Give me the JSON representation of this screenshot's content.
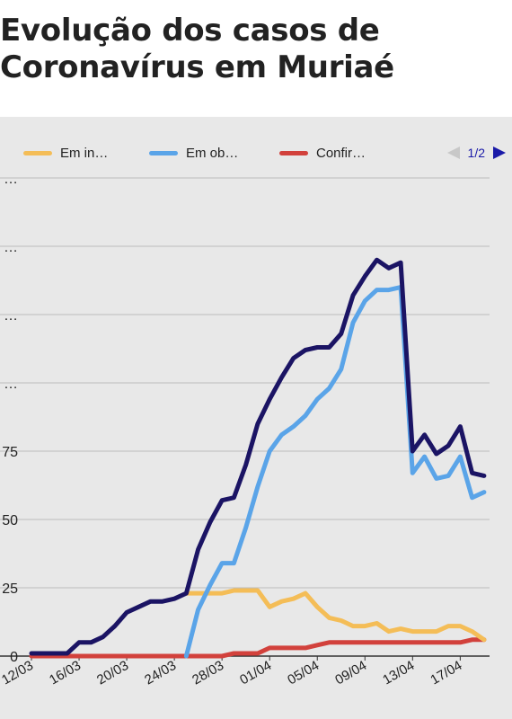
{
  "title": {
    "line1": "Evolução dos casos de",
    "line2": "Coronavírus em Muriaé"
  },
  "legend": [
    {
      "label": "Em in…",
      "color": "#f4bd57"
    },
    {
      "label": "Em ob…",
      "color": "#5aa4e8"
    },
    {
      "label": "Confir…",
      "color": "#d2413c"
    }
  ],
  "pager": {
    "text": "1/2",
    "prev_icon": "triangle-left-icon",
    "next_icon": "triangle-right-icon"
  },
  "chart_data": {
    "type": "line",
    "title": "",
    "xlabel": "",
    "ylabel": "",
    "ylim": [
      0,
      175
    ],
    "grid": true,
    "legend_position": "top",
    "y_ticks": [
      "0",
      "25",
      "50",
      "75",
      "…",
      "…",
      "…",
      "…"
    ],
    "x_tick_labels": [
      "12/03",
      "16/03",
      "20/03",
      "24/03",
      "28/03",
      "01/04",
      "05/04",
      "09/04",
      "13/04",
      "17/04"
    ],
    "x": [
      "12/03",
      "13/03",
      "14/03",
      "15/03",
      "16/03",
      "17/03",
      "18/03",
      "19/03",
      "20/03",
      "21/03",
      "22/03",
      "23/03",
      "24/03",
      "25/03",
      "26/03",
      "27/03",
      "28/03",
      "29/03",
      "30/03",
      "31/03",
      "01/04",
      "02/04",
      "03/04",
      "04/04",
      "05/04",
      "06/04",
      "07/04",
      "08/04",
      "09/04",
      "10/04",
      "11/04",
      "12/04",
      "13/04",
      "14/04",
      "15/04",
      "16/04",
      "17/04",
      "18/04",
      "19/04"
    ],
    "series": [
      {
        "name": "Em in…",
        "color": "#f4bd57",
        "values": [
          null,
          null,
          null,
          null,
          null,
          null,
          null,
          null,
          null,
          null,
          null,
          null,
          null,
          23,
          23,
          23,
          23,
          24,
          24,
          24,
          18,
          20,
          21,
          23,
          18,
          14,
          13,
          11,
          11,
          12,
          9,
          10,
          9,
          9,
          9,
          11,
          11,
          9,
          6
        ]
      },
      {
        "name": "Em ob…",
        "color": "#5aa4e8",
        "values": [
          null,
          null,
          null,
          null,
          null,
          null,
          null,
          null,
          null,
          null,
          null,
          null,
          null,
          0,
          17,
          26,
          34,
          34,
          47,
          62,
          75,
          81,
          84,
          88,
          94,
          98,
          105,
          122,
          130,
          134,
          134,
          135,
          67,
          73,
          65,
          66,
          73,
          58,
          60
        ]
      },
      {
        "name": "Confir…",
        "color": "#d2413c",
        "values": [
          0,
          0,
          0,
          0,
          0,
          0,
          0,
          0,
          0,
          0,
          0,
          0,
          0,
          0,
          0,
          0,
          0,
          1,
          1,
          1,
          3,
          3,
          3,
          3,
          4,
          5,
          5,
          5,
          5,
          5,
          5,
          5,
          5,
          5,
          5,
          5,
          5,
          6,
          6
        ]
      },
      {
        "color": "#1b1464",
        "values": [
          1,
          1,
          1,
          1,
          5,
          5,
          7,
          11,
          16,
          18,
          20,
          20,
          21,
          23,
          39,
          49,
          57,
          58,
          70,
          85,
          94,
          102,
          109,
          112,
          113,
          113,
          118,
          132,
          139,
          145,
          142,
          144,
          75,
          81,
          74,
          77,
          84,
          67,
          66
        ]
      }
    ]
  }
}
